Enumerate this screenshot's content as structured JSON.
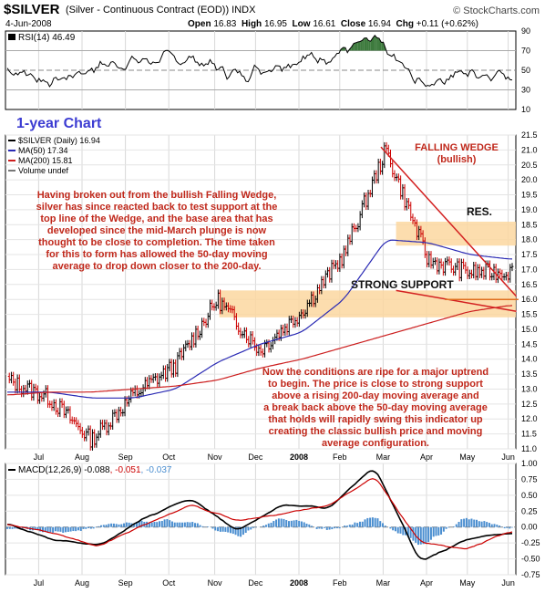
{
  "header": {
    "symbol": "$SILVER",
    "description": "(Silver - Continuous Contract (EOD)) INDX",
    "brand": "© StockCharts.com",
    "date": "4-Jun-2008",
    "open_label": "Open",
    "open": "16.83",
    "high_label": "High",
    "high": "16.95",
    "low_label": "Low",
    "low": "16.61",
    "close_label": "Close",
    "close": "16.94",
    "chg_label": "Chg",
    "chg": "+0.11 (+0.62%)"
  },
  "rsi_panel": {
    "legend": "RSI(14) 46.49",
    "ticks": [
      "90",
      "70",
      "50",
      "30",
      "10"
    ]
  },
  "price_panel": {
    "chart_title": "1-year Chart",
    "legend_price": "$SILVER (Daily) 16.94",
    "legend_ma50": "MA(50) 17.34",
    "legend_ma200": "MA(200) 15.81",
    "legend_volume": "Volume undef",
    "annotation_wedge": [
      "FALLING WEDGE",
      "(bullish)"
    ],
    "annotation_res": "RES.",
    "annotation_support": "STRONG SUPPORT",
    "annotation_left": [
      "Having broken out from the bullish Falling Wedge,",
      "silver has since reacted back to test support at the",
      "top line of the Wedge, and the base area that has",
      "developed since the mid-March plunge is now",
      "thought to be close to completion. The time taken",
      "for this to form has allowed the 50-day moving",
      "average to drop down closer to the 200-day."
    ],
    "annotation_bottom": [
      "Now the conditions are ripe for a major uptrend",
      "to begin. The price is close to strong support",
      "above a rising 200-day moving average and",
      "a break back above the 50-day moving average",
      "that holds will rapidly swing this indicator up",
      "creating the classic bullish price and moving",
      "average configuration."
    ]
  },
  "macd_panel": {
    "legend_label": "MACD(12,26,9)",
    "legend_macd": "-0.088",
    "legend_signal": "-0.051",
    "legend_hist": "-0.037",
    "ticks": [
      "1.00",
      "0.75",
      "0.50",
      "0.25",
      "0.00",
      "-0.25",
      "-0.50",
      "-0.75"
    ]
  },
  "x_axis_labels": [
    "Jul",
    "Aug",
    "Sep",
    "Oct",
    "Nov",
    "Dec",
    "2008",
    "Feb",
    "Mar",
    "Apr",
    "May",
    "Jun"
  ],
  "colors": {
    "price_up": "#000000",
    "price_down": "#cc0000",
    "ma50": "#2a2ab4",
    "ma200": "#cc1e1e",
    "annotation": "#c0281b",
    "title": "#3c3cd2",
    "support_zone": "#fbd7a0",
    "rsi_fill": "#3d7a3d"
  },
  "chart_data": [
    {
      "type": "line",
      "title": "RSI(14)",
      "ylim": [
        10,
        90
      ],
      "x": [
        "Jul",
        "Aug",
        "Sep",
        "Oct",
        "Nov",
        "Dec",
        "Jan",
        "Feb",
        "Mar",
        "Apr",
        "May",
        "Jun"
      ],
      "series": [
        {
          "name": "RSI(14)",
          "values": [
            52,
            38,
            55,
            60,
            62,
            45,
            58,
            65,
            80,
            36,
            48,
            46.49
          ]
        }
      ],
      "reference_lines": [
        70,
        50,
        30
      ]
    },
    {
      "type": "line",
      "title": "$SILVER (Daily)",
      "ylim": [
        11.0,
        21.5
      ],
      "x": [
        "Jun",
        "Jul",
        "Aug",
        "Sep",
        "Oct",
        "Nov",
        "Dec",
        "Jan",
        "Feb",
        "Mar",
        "Apr",
        "May",
        "Jun"
      ],
      "series": [
        {
          "name": "$SILVER (Daily)",
          "values": [
            13.3,
            12.7,
            11.3,
            12.8,
            13.8,
            16.0,
            14.3,
            15.6,
            17.5,
            21.0,
            17.3,
            16.9,
            16.94
          ]
        },
        {
          "name": "MA(50)",
          "values": [
            12.9,
            12.9,
            12.7,
            12.7,
            13.0,
            13.9,
            14.5,
            14.9,
            16.0,
            18.0,
            17.9,
            17.5,
            17.34
          ]
        },
        {
          "name": "MA(200)",
          "values": [
            12.8,
            12.9,
            12.9,
            13.0,
            13.1,
            13.3,
            13.7,
            14.0,
            14.4,
            14.8,
            15.2,
            15.6,
            15.81
          ]
        }
      ],
      "zones": [
        {
          "name": "RES.",
          "range": [
            17.8,
            18.6
          ]
        },
        {
          "name": "STRONG SUPPORT",
          "range": [
            15.4,
            16.3
          ]
        }
      ]
    },
    {
      "type": "line",
      "title": "MACD(12,26,9)",
      "ylim": [
        -0.75,
        1.0
      ],
      "x": [
        "Jul",
        "Aug",
        "Sep",
        "Oct",
        "Nov",
        "Dec",
        "Jan",
        "Feb",
        "Mar",
        "Apr",
        "May",
        "Jun"
      ],
      "series": [
        {
          "name": "MACD",
          "values": [
            0.05,
            -0.2,
            -0.3,
            0.15,
            0.45,
            -0.05,
            0.35,
            0.3,
            0.95,
            -0.55,
            -0.2,
            -0.088
          ]
        },
        {
          "name": "Signal",
          "values": [
            0.05,
            -0.1,
            -0.3,
            0.05,
            0.35,
            0.1,
            0.2,
            0.35,
            0.8,
            -0.25,
            -0.35,
            -0.051
          ]
        },
        {
          "name": "Histogram",
          "values": [
            0.0,
            -0.1,
            0.0,
            0.1,
            0.1,
            -0.15,
            0.15,
            -0.05,
            0.15,
            -0.3,
            0.15,
            -0.037
          ]
        }
      ]
    }
  ]
}
